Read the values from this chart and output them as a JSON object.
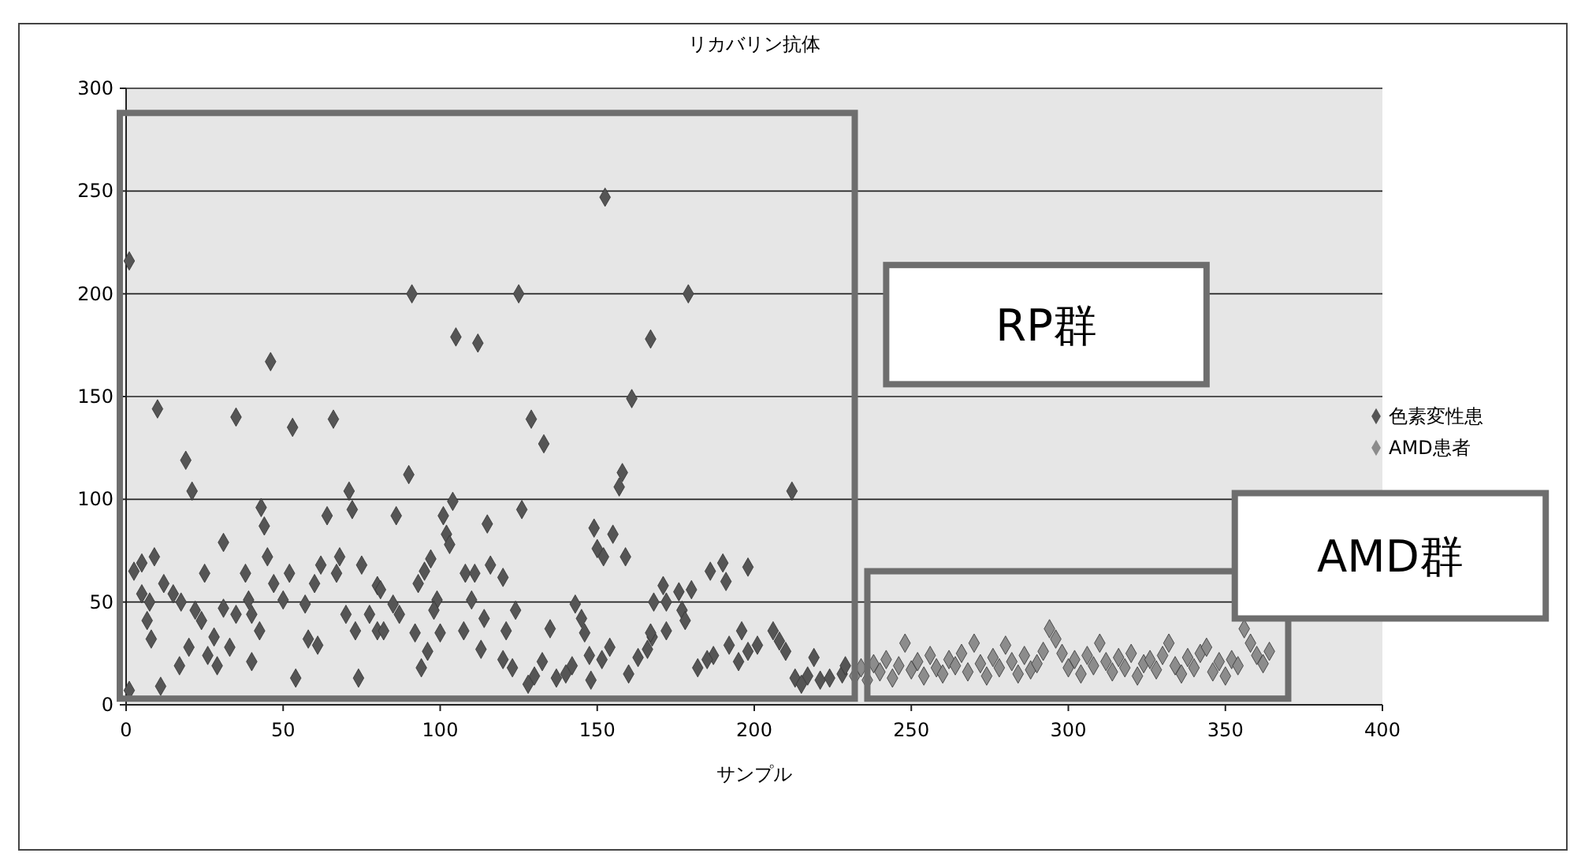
{
  "chart_data": {
    "type": "scatter",
    "title": "リカバリン抗体",
    "xlabel": "サンプル",
    "xlim": [
      0,
      400
    ],
    "xticks": [
      0,
      50,
      100,
      150,
      200,
      250,
      300,
      350,
      400
    ],
    "ylim": [
      0,
      300
    ],
    "yticks": [
      0,
      50,
      100,
      150,
      200,
      250,
      300
    ],
    "grid": "y",
    "legend": "right",
    "marker": "diamond",
    "annotations": [
      "RP群",
      "AMD群"
    ],
    "series": [
      {
        "name": "色素変性患",
        "color": "#555555",
        "x": [
          1,
          46,
          10,
          35,
          53,
          66,
          19,
          21,
          43,
          44,
          71,
          72,
          64,
          31,
          45,
          9,
          5,
          2.5,
          25,
          38,
          52,
          62,
          68,
          67,
          75,
          80,
          12,
          15,
          17.5,
          5,
          7.5,
          47,
          50,
          57,
          60,
          22,
          24,
          31,
          35,
          39,
          40,
          42.5,
          6.7,
          8,
          70,
          73,
          77.5,
          80,
          28,
          33,
          20,
          17,
          26,
          29,
          58,
          61,
          40,
          54,
          74,
          11,
          1,
          152.5,
          91,
          125,
          105,
          112,
          167,
          161,
          129,
          133,
          90,
          158,
          157,
          104,
          86,
          101,
          102,
          103,
          115,
          126,
          149,
          155,
          150,
          152,
          159,
          97,
          95,
          93,
          108,
          111,
          116,
          120,
          81,
          85,
          87,
          82,
          99,
          98,
          110,
          114,
          124,
          143,
          145,
          168,
          92,
          100,
          107.5,
          121,
          135,
          146,
          167.5,
          96,
          94,
          113,
          120,
          123,
          130,
          132.5,
          128,
          137,
          142,
          140,
          147.5,
          151.5,
          154,
          148,
          160,
          163,
          166,
          179,
          212,
          186,
          190,
          191,
          198,
          171,
          176,
          180,
          172,
          177,
          178,
          167,
          172,
          182,
          187,
          192,
          196,
          198,
          201,
          206,
          208,
          210,
          185,
          195,
          219,
          213,
          217,
          221,
          224,
          228,
          229,
          215
        ],
        "values": [
          216,
          167,
          144,
          140,
          135,
          139,
          119,
          104,
          96,
          87,
          104,
          95,
          92,
          79,
          72,
          72,
          69,
          65,
          64,
          64,
          64,
          68,
          72,
          64,
          68,
          58,
          59,
          54,
          50,
          54,
          50,
          59,
          51,
          49,
          59,
          46,
          41,
          47,
          44,
          51,
          44,
          36,
          41,
          32,
          44,
          36,
          44,
          36,
          33,
          28,
          28,
          19,
          24,
          19,
          32,
          29,
          21,
          13,
          13,
          9,
          7,
          247,
          200,
          200,
          179,
          176,
          178,
          149,
          139,
          127,
          112,
          113,
          106,
          99,
          92,
          92,
          83,
          78,
          88,
          95,
          86,
          83,
          76,
          72,
          72,
          71,
          65,
          59,
          64,
          64,
          68,
          62,
          56,
          49,
          44,
          36,
          51,
          46,
          51,
          42,
          46,
          49,
          42,
          50,
          35,
          35,
          36,
          36,
          37,
          35,
          33,
          26,
          18,
          27,
          22,
          18,
          14,
          21,
          10,
          13,
          19,
          15,
          24,
          22,
          28,
          12,
          15,
          23,
          27,
          200,
          104,
          65,
          69,
          60,
          67,
          58,
          55,
          56,
          50,
          46,
          41,
          35,
          36,
          18,
          24,
          29,
          36,
          26,
          29,
          36,
          31,
          26,
          22,
          21,
          23,
          13,
          14,
          12,
          13,
          15,
          19,
          10
        ]
      },
      {
        "name": "AMD患者",
        "color": "#8c8c8c",
        "x": [
          232,
          234,
          236,
          238,
          240,
          242,
          244,
          246,
          248,
          250,
          252,
          254,
          256,
          258,
          260,
          262,
          264,
          266,
          268,
          270,
          272,
          274,
          276,
          278,
          280,
          282,
          284,
          286,
          288,
          290,
          292,
          294,
          296,
          298,
          300,
          302,
          304,
          306,
          308,
          310,
          312,
          314,
          316,
          318,
          320,
          322,
          324,
          326,
          328,
          330,
          332,
          334,
          336,
          338,
          340,
          342,
          344,
          346,
          348,
          350,
          352,
          354,
          356,
          358,
          360,
          362,
          364
        ],
        "values": [
          14,
          18,
          12,
          20,
          16,
          22,
          13,
          19,
          30,
          17,
          21,
          14,
          24,
          18,
          15,
          22,
          19,
          25,
          16,
          30,
          20,
          14,
          23,
          18,
          29,
          21,
          15,
          24,
          17,
          20,
          26,
          37,
          32,
          25,
          18,
          22,
          15,
          24,
          19,
          30,
          21,
          16,
          23,
          18,
          25,
          14,
          20,
          22,
          17,
          24,
          30,
          19,
          15,
          23,
          18,
          25,
          28,
          16,
          21,
          14,
          22,
          19,
          37,
          30,
          24,
          20,
          26
        ]
      }
    ]
  }
}
